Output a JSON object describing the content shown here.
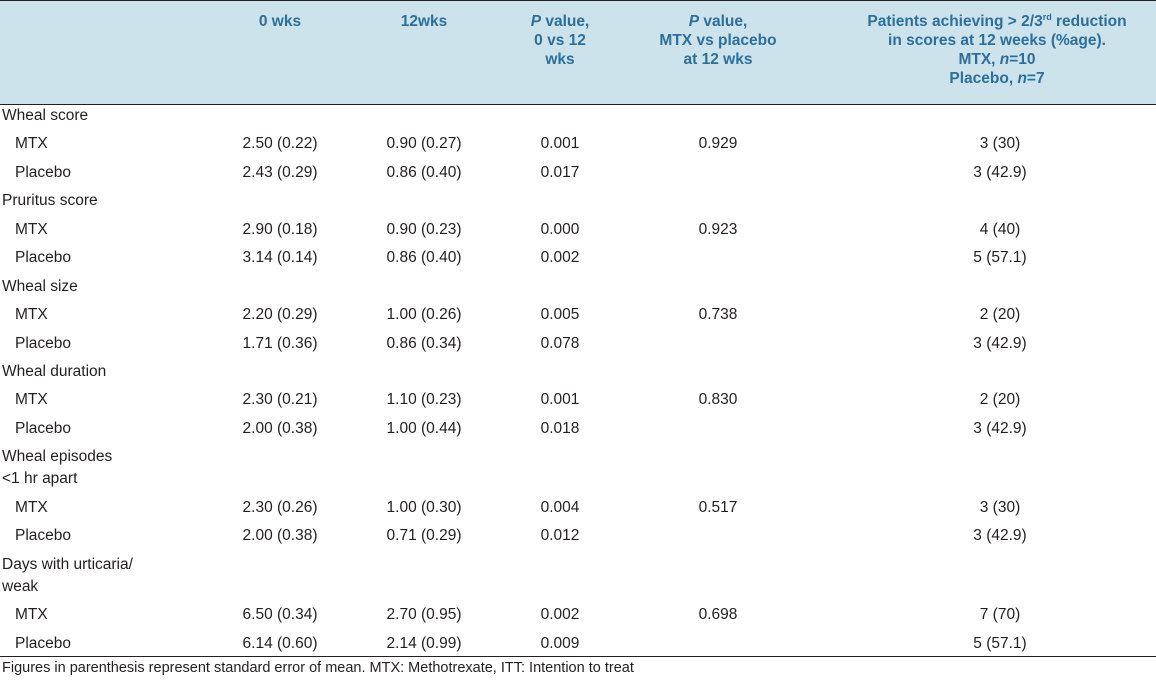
{
  "header": {
    "col0": "0 wks",
    "col1": "12wks",
    "col2_italic": "P",
    "col2_l1": " value,",
    "col2_l2": "0 vs 12",
    "col2_l3": "wks",
    "col3_italic": "P",
    "col3_l1": " value,",
    "col3_l2": "MTX vs placebo",
    "col3_l3": "at 12 wks",
    "col4_l1a": "Patients achieving > 2/3",
    "col4_l1sup": "rd",
    "col4_l1b": " reduction",
    "col4_l2": "in scores at 12 weeks (%age).",
    "col4_l3a": "MTX, ",
    "col4_l3n": "n",
    "col4_l3b": "=10",
    "col4_l4a": "Placebo, ",
    "col4_l4n": "n",
    "col4_l4b": "=7"
  },
  "groups": [
    {
      "label": "Wheal score",
      "label2": "",
      "rows": [
        {
          "name": "MTX",
          "w0": "2.50 (0.22)",
          "w12": "0.90 (0.27)",
          "p": "0.001",
          "p2": "0.929",
          "pct": "3 (30)"
        },
        {
          "name": "Placebo",
          "w0": "2.43 (0.29)",
          "w12": "0.86 (0.40)",
          "p": "0.017",
          "p2": "",
          "pct": "3 (42.9)"
        }
      ]
    },
    {
      "label": "Pruritus score",
      "label2": "",
      "rows": [
        {
          "name": "MTX",
          "w0": "2.90 (0.18)",
          "w12": "0.90 (0.23)",
          "p": "0.000",
          "p2": "0.923",
          "pct": "4 (40)"
        },
        {
          "name": "Placebo",
          "w0": "3.14 (0.14)",
          "w12": "0.86 (0.40)",
          "p": "0.002",
          "p2": "",
          "pct": "5 (57.1)"
        }
      ]
    },
    {
      "label": "Wheal size",
      "label2": "",
      "rows": [
        {
          "name": "MTX",
          "w0": "2.20 (0.29)",
          "w12": "1.00 (0.26)",
          "p": "0.005",
          "p2": "0.738",
          "pct": "2 (20)"
        },
        {
          "name": "Placebo",
          "w0": "1.71 (0.36)",
          "w12": "0.86 (0.34)",
          "p": "0.078",
          "p2": "",
          "pct": "3 (42.9)"
        }
      ]
    },
    {
      "label": "Wheal duration",
      "label2": "",
      "rows": [
        {
          "name": "MTX",
          "w0": "2.30 (0.21)",
          "w12": "1.10 (0.23)",
          "p": "0.001",
          "p2": "0.830",
          "pct": "2 (20)"
        },
        {
          "name": "Placebo",
          "w0": "2.00 (0.38)",
          "w12": "1.00 (0.44)",
          "p": "0.018",
          "p2": "",
          "pct": "3 (42.9)"
        }
      ]
    },
    {
      "label": "Wheal episodes",
      "label2": "<1 hr apart",
      "rows": [
        {
          "name": "MTX",
          "w0": "2.30 (0.26)",
          "w12": "1.00 (0.30)",
          "p": "0.004",
          "p2": "0.517",
          "pct": "3 (30)"
        },
        {
          "name": "Placebo",
          "w0": "2.00 (0.38)",
          "w12": "0.71 (0.29)",
          "p": "0.012",
          "p2": "",
          "pct": "3 (42.9)"
        }
      ]
    },
    {
      "label": "Days with urticaria/",
      "label2": "weak",
      "rows": [
        {
          "name": "MTX",
          "w0": "6.50 (0.34)",
          "w12": "2.70 (0.95)",
          "p": "0.002",
          "p2": "0.698",
          "pct": "7 (70)"
        },
        {
          "name": "Placebo",
          "w0": "6.14 (0.60)",
          "w12": "2.14 (0.99)",
          "p": "0.009",
          "p2": "",
          "pct": "5 (57.1)"
        }
      ]
    }
  ],
  "footnote": "Figures in parenthesis represent standard error of mean. MTX: Methotrexate, ITT: Intention to treat"
}
